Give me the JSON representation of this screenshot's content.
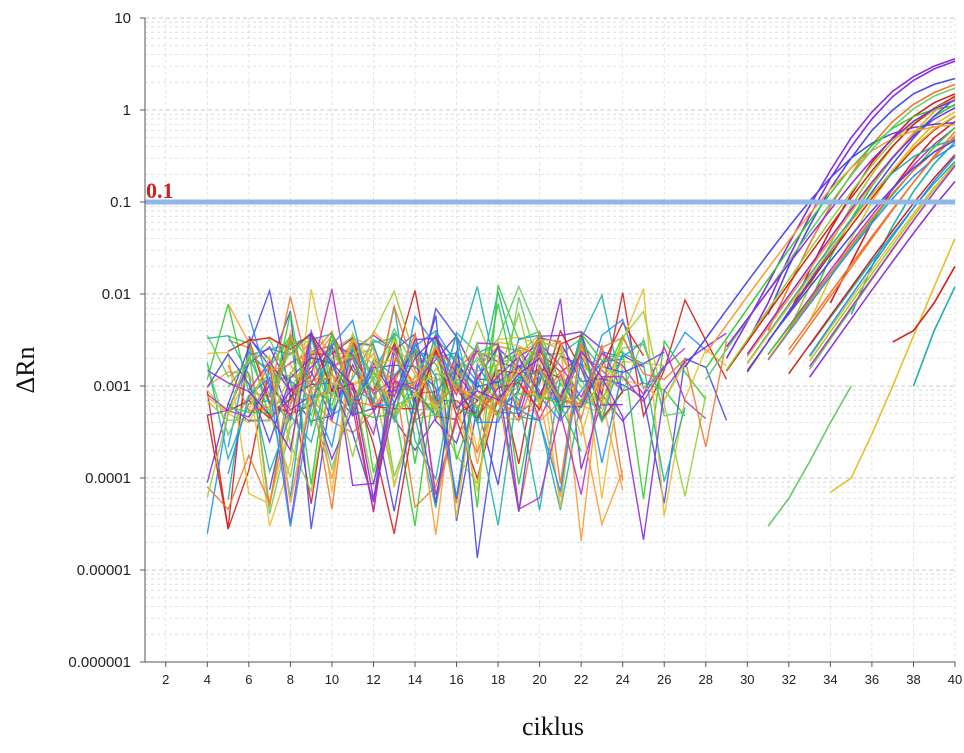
{
  "colors": {
    "threshold": "#8fb8e6",
    "threshold_label": "#cc2222",
    "palette": [
      "#8a2be2",
      "#f07830",
      "#d42020",
      "#4a4ae8",
      "#9acd32",
      "#20b2aa",
      "#32cd32",
      "#e6c02a",
      "#c030c0",
      "#ff9933",
      "#1e90ff",
      "#66cc66"
    ]
  },
  "chart_data": {
    "type": "line",
    "title": "",
    "xlabel": "ciklus",
    "ylabel": "ΔRn",
    "y_scale": "log",
    "xlim": [
      1,
      40
    ],
    "ylim": [
      1e-06,
      10
    ],
    "xticks": [
      "2",
      "4",
      "6",
      "8",
      "10",
      "12",
      "14",
      "16",
      "18",
      "20",
      "22",
      "24",
      "26",
      "28",
      "30",
      "32",
      "34",
      "36",
      "38",
      "40"
    ],
    "yticks": [
      "10",
      "1",
      "0.1",
      "0.01",
      "0.001",
      "0.0001",
      "0.00001",
      "0.000001"
    ],
    "grid": true,
    "legend": "none",
    "threshold": {
      "value": 0.1,
      "label": "0.1"
    },
    "series_note": "approximately 50 amplification curves, baseline noise ~0.0001–0.005 for cycles 5–29, crossing threshold 0.1 between cycles 32 and 40, plateau 0.5–3.5 at cycle 40",
    "series": [
      {
        "color": "#8a2be2",
        "x": [
          30,
          31,
          32,
          33,
          34,
          35,
          36,
          37,
          38,
          39,
          40
        ],
        "y": [
          0.003,
          0.008,
          0.025,
          0.07,
          0.18,
          0.4,
          0.8,
          1.4,
          2.1,
          2.8,
          3.4
        ]
      },
      {
        "color": "#8a2be2",
        "x": [
          29,
          30,
          31,
          32,
          33,
          34,
          35,
          36,
          37,
          38,
          39,
          40
        ],
        "y": [
          0.002,
          0.005,
          0.013,
          0.035,
          0.09,
          0.22,
          0.5,
          0.95,
          1.6,
          2.3,
          3.0,
          3.6
        ]
      },
      {
        "color": "#4a4ae8",
        "x": [
          31,
          32,
          33,
          34,
          35,
          36,
          37,
          38,
          39,
          40
        ],
        "y": [
          0.006,
          0.02,
          0.055,
          0.14,
          0.3,
          0.6,
          1.0,
          1.5,
          1.9,
          2.2
        ]
      },
      {
        "color": "#f07830",
        "x": [
          31,
          32,
          33,
          34,
          35,
          36,
          37,
          38,
          39,
          40
        ],
        "y": [
          0.004,
          0.012,
          0.035,
          0.09,
          0.2,
          0.42,
          0.75,
          1.15,
          1.55,
          1.9
        ]
      },
      {
        "color": "#d42020",
        "x": [
          32,
          33,
          34,
          35,
          36,
          37,
          38,
          39,
          40
        ],
        "y": [
          0.006,
          0.018,
          0.05,
          0.12,
          0.27,
          0.5,
          0.85,
          1.2,
          1.5
        ]
      },
      {
        "color": "#9acd32",
        "x": [
          32,
          33,
          34,
          35,
          36,
          37,
          38,
          39,
          40
        ],
        "y": [
          0.004,
          0.012,
          0.035,
          0.09,
          0.2,
          0.4,
          0.7,
          1.0,
          1.3
        ]
      },
      {
        "color": "#32cd32",
        "x": [
          33,
          34,
          35,
          36,
          37,
          38,
          39,
          40
        ],
        "y": [
          0.008,
          0.025,
          0.065,
          0.15,
          0.3,
          0.55,
          0.85,
          1.15
        ]
      },
      {
        "color": "#e6c02a",
        "x": [
          33,
          34,
          35,
          36,
          37,
          38,
          39,
          40
        ],
        "y": [
          0.005,
          0.015,
          0.04,
          0.1,
          0.22,
          0.42,
          0.7,
          0.95
        ]
      },
      {
        "color": "#d42020",
        "x": [
          34,
          35,
          36,
          37,
          38,
          39,
          40
        ],
        "y": [
          0.008,
          0.022,
          0.06,
          0.14,
          0.28,
          0.5,
          0.75
        ]
      },
      {
        "color": "#20b2aa",
        "x": [
          35,
          36,
          37,
          38,
          39,
          40
        ],
        "y": [
          0.006,
          0.02,
          0.055,
          0.13,
          0.26,
          0.45
        ]
      },
      {
        "color": "#e6c02a",
        "x": [
          34,
          35,
          36,
          37,
          38,
          39,
          40
        ],
        "y": [
          7e-05,
          0.0001,
          0.0003,
          0.001,
          0.0035,
          0.012,
          0.04
        ]
      },
      {
        "color": "#66cc66",
        "x": [
          31,
          32,
          33,
          34,
          35
        ],
        "y": [
          3e-05,
          6e-05,
          0.00015,
          0.0004,
          0.001
        ]
      },
      {
        "color": "#d42020",
        "x": [
          37,
          38,
          39,
          40
        ],
        "y": [
          0.003,
          0.004,
          0.008,
          0.02
        ]
      },
      {
        "color": "#20b2aa",
        "x": [
          38,
          39,
          40
        ],
        "y": [
          0.001,
          0.004,
          0.012
        ]
      }
    ]
  }
}
